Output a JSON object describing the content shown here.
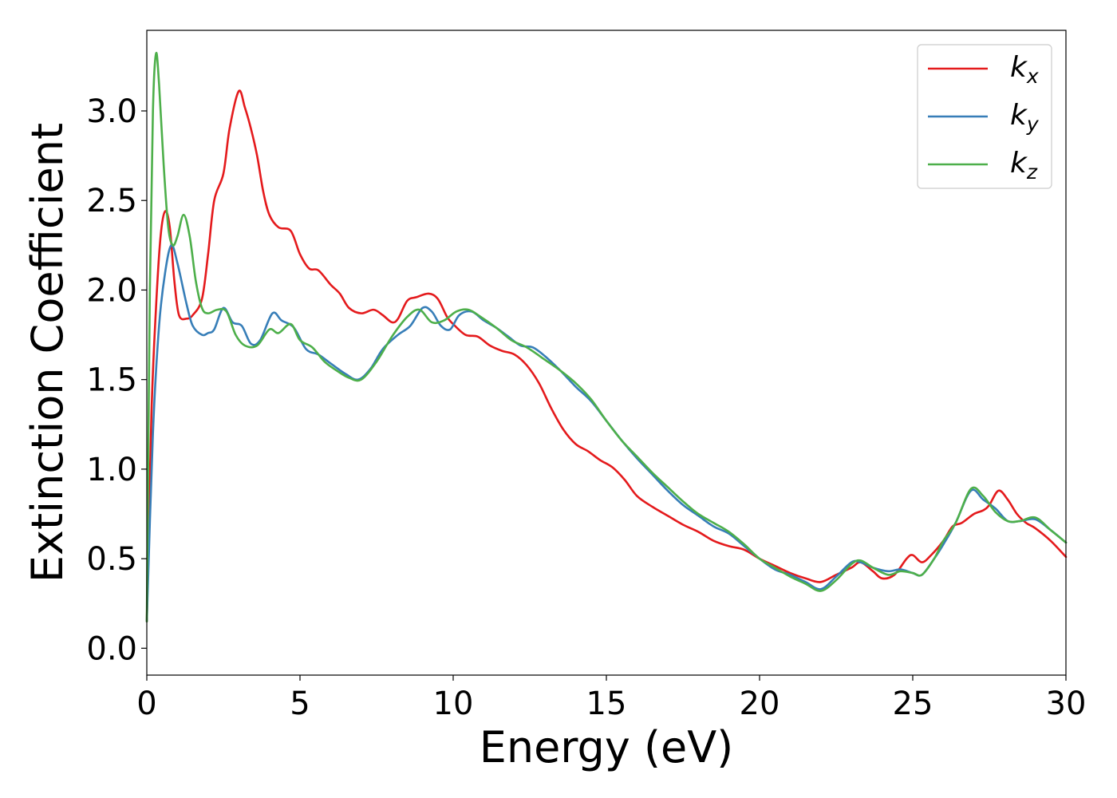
{
  "chart_data": {
    "type": "line",
    "xlabel": "Energy (eV)",
    "ylabel": "Extinction Coefficient",
    "xlim": [
      0,
      30
    ],
    "ylim": [
      -0.15,
      3.45
    ],
    "xticks": [
      0,
      5,
      10,
      15,
      20,
      25,
      30
    ],
    "xtick_labels": [
      "0",
      "5",
      "10",
      "15",
      "20",
      "25",
      "30"
    ],
    "yticks": [
      0.0,
      0.5,
      1.0,
      1.5,
      2.0,
      2.5,
      3.0
    ],
    "ytick_labels": [
      "0.0",
      "0.5",
      "1.0",
      "1.5",
      "2.0",
      "2.5",
      "3.0"
    ],
    "grid": false,
    "legend_position": "top-right",
    "series": [
      {
        "name": "k",
        "subscript": "x",
        "color": "#e41a1c",
        "points": [
          [
            0,
            0.15
          ],
          [
            0.15,
            1.3
          ],
          [
            0.3,
            1.9
          ],
          [
            0.45,
            2.3
          ],
          [
            0.6,
            2.44
          ],
          [
            0.75,
            2.35
          ],
          [
            0.9,
            2.05
          ],
          [
            1.05,
            1.86
          ],
          [
            1.3,
            1.84
          ],
          [
            1.5,
            1.86
          ],
          [
            1.8,
            1.95
          ],
          [
            2.0,
            2.2
          ],
          [
            2.2,
            2.5
          ],
          [
            2.5,
            2.65
          ],
          [
            2.7,
            2.9
          ],
          [
            3.0,
            3.11
          ],
          [
            3.2,
            3.02
          ],
          [
            3.4,
            2.9
          ],
          [
            3.6,
            2.75
          ],
          [
            3.8,
            2.55
          ],
          [
            4.0,
            2.42
          ],
          [
            4.3,
            2.35
          ],
          [
            4.7,
            2.33
          ],
          [
            5.0,
            2.2
          ],
          [
            5.3,
            2.12
          ],
          [
            5.6,
            2.11
          ],
          [
            6.0,
            2.03
          ],
          [
            6.3,
            1.98
          ],
          [
            6.6,
            1.9
          ],
          [
            7.0,
            1.87
          ],
          [
            7.4,
            1.89
          ],
          [
            7.7,
            1.86
          ],
          [
            8.0,
            1.82
          ],
          [
            8.2,
            1.84
          ],
          [
            8.5,
            1.94
          ],
          [
            8.8,
            1.96
          ],
          [
            9.2,
            1.98
          ],
          [
            9.5,
            1.95
          ],
          [
            9.8,
            1.85
          ],
          [
            10.0,
            1.81
          ],
          [
            10.4,
            1.75
          ],
          [
            10.8,
            1.74
          ],
          [
            11.2,
            1.69
          ],
          [
            11.6,
            1.66
          ],
          [
            12.0,
            1.64
          ],
          [
            12.4,
            1.58
          ],
          [
            12.8,
            1.48
          ],
          [
            13.2,
            1.34
          ],
          [
            13.6,
            1.22
          ],
          [
            14.0,
            1.14
          ],
          [
            14.4,
            1.1
          ],
          [
            14.8,
            1.05
          ],
          [
            15.2,
            1.01
          ],
          [
            15.6,
            0.94
          ],
          [
            16.0,
            0.85
          ],
          [
            16.5,
            0.79
          ],
          [
            17.0,
            0.74
          ],
          [
            17.5,
            0.69
          ],
          [
            18.0,
            0.65
          ],
          [
            18.5,
            0.6
          ],
          [
            19.0,
            0.57
          ],
          [
            19.5,
            0.55
          ],
          [
            20.0,
            0.5
          ],
          [
            20.5,
            0.46
          ],
          [
            21.0,
            0.42
          ],
          [
            21.5,
            0.39
          ],
          [
            22.0,
            0.37
          ],
          [
            22.5,
            0.41
          ],
          [
            23.0,
            0.45
          ],
          [
            23.3,
            0.48
          ],
          [
            23.7,
            0.43
          ],
          [
            24.0,
            0.39
          ],
          [
            24.4,
            0.41
          ],
          [
            24.8,
            0.5
          ],
          [
            25.0,
            0.52
          ],
          [
            25.3,
            0.48
          ],
          [
            25.6,
            0.52
          ],
          [
            26.0,
            0.6
          ],
          [
            26.3,
            0.68
          ],
          [
            26.6,
            0.7
          ],
          [
            27.0,
            0.75
          ],
          [
            27.3,
            0.77
          ],
          [
            27.5,
            0.8
          ],
          [
            27.8,
            0.88
          ],
          [
            28.1,
            0.83
          ],
          [
            28.4,
            0.75
          ],
          [
            28.7,
            0.7
          ],
          [
            29.0,
            0.67
          ],
          [
            29.5,
            0.6
          ],
          [
            30.0,
            0.51
          ]
        ]
      },
      {
        "name": "k",
        "subscript": "y",
        "color": "#377eb8",
        "points": [
          [
            0,
            0.15
          ],
          [
            0.2,
            1.2
          ],
          [
            0.4,
            1.8
          ],
          [
            0.6,
            2.1
          ],
          [
            0.8,
            2.25
          ],
          [
            1.0,
            2.15
          ],
          [
            1.3,
            1.92
          ],
          [
            1.5,
            1.8
          ],
          [
            1.8,
            1.75
          ],
          [
            2.0,
            1.76
          ],
          [
            2.2,
            1.78
          ],
          [
            2.5,
            1.9
          ],
          [
            2.8,
            1.82
          ],
          [
            3.1,
            1.8
          ],
          [
            3.4,
            1.7
          ],
          [
            3.7,
            1.72
          ],
          [
            4.1,
            1.87
          ],
          [
            4.4,
            1.83
          ],
          [
            4.8,
            1.79
          ],
          [
            5.2,
            1.67
          ],
          [
            5.6,
            1.64
          ],
          [
            6.0,
            1.59
          ],
          [
            6.5,
            1.53
          ],
          [
            6.9,
            1.5
          ],
          [
            7.3,
            1.56
          ],
          [
            7.7,
            1.67
          ],
          [
            8.2,
            1.75
          ],
          [
            8.6,
            1.8
          ],
          [
            9.0,
            1.9
          ],
          [
            9.3,
            1.88
          ],
          [
            9.6,
            1.8
          ],
          [
            9.9,
            1.78
          ],
          [
            10.2,
            1.86
          ],
          [
            10.6,
            1.88
          ],
          [
            11.0,
            1.83
          ],
          [
            11.4,
            1.79
          ],
          [
            11.8,
            1.74
          ],
          [
            12.2,
            1.69
          ],
          [
            12.6,
            1.68
          ],
          [
            13.0,
            1.63
          ],
          [
            13.5,
            1.55
          ],
          [
            14.0,
            1.46
          ],
          [
            14.5,
            1.38
          ],
          [
            15.0,
            1.27
          ],
          [
            15.5,
            1.16
          ],
          [
            16.0,
            1.06
          ],
          [
            16.5,
            0.97
          ],
          [
            17.0,
            0.88
          ],
          [
            17.5,
            0.8
          ],
          [
            18.0,
            0.74
          ],
          [
            18.5,
            0.68
          ],
          [
            19.0,
            0.64
          ],
          [
            19.5,
            0.57
          ],
          [
            20.0,
            0.5
          ],
          [
            20.5,
            0.44
          ],
          [
            21.0,
            0.41
          ],
          [
            21.5,
            0.37
          ],
          [
            22.0,
            0.33
          ],
          [
            22.5,
            0.4
          ],
          [
            23.0,
            0.48
          ],
          [
            23.3,
            0.48
          ],
          [
            23.7,
            0.45
          ],
          [
            24.2,
            0.43
          ],
          [
            24.6,
            0.44
          ],
          [
            25.0,
            0.42
          ],
          [
            25.3,
            0.41
          ],
          [
            25.7,
            0.5
          ],
          [
            26.0,
            0.58
          ],
          [
            26.4,
            0.7
          ],
          [
            26.9,
            0.88
          ],
          [
            27.3,
            0.83
          ],
          [
            27.7,
            0.78
          ],
          [
            28.1,
            0.71
          ],
          [
            28.5,
            0.71
          ],
          [
            29.0,
            0.72
          ],
          [
            29.5,
            0.66
          ],
          [
            30.0,
            0.59
          ]
        ]
      },
      {
        "name": "k",
        "subscript": "z",
        "color": "#4daf4a",
        "points": [
          [
            0,
            0.15
          ],
          [
            0.1,
            2.0
          ],
          [
            0.2,
            3.0
          ],
          [
            0.3,
            3.32
          ],
          [
            0.4,
            3.15
          ],
          [
            0.55,
            2.7
          ],
          [
            0.7,
            2.35
          ],
          [
            0.85,
            2.25
          ],
          [
            1.0,
            2.3
          ],
          [
            1.2,
            2.42
          ],
          [
            1.4,
            2.3
          ],
          [
            1.6,
            2.05
          ],
          [
            1.8,
            1.9
          ],
          [
            2.0,
            1.87
          ],
          [
            2.3,
            1.89
          ],
          [
            2.6,
            1.88
          ],
          [
            2.9,
            1.75
          ],
          [
            3.2,
            1.69
          ],
          [
            3.6,
            1.69
          ],
          [
            4.0,
            1.78
          ],
          [
            4.3,
            1.76
          ],
          [
            4.7,
            1.81
          ],
          [
            5.0,
            1.72
          ],
          [
            5.4,
            1.68
          ],
          [
            5.8,
            1.6
          ],
          [
            6.2,
            1.55
          ],
          [
            6.6,
            1.51
          ],
          [
            7.0,
            1.5
          ],
          [
            7.5,
            1.6
          ],
          [
            8.0,
            1.74
          ],
          [
            8.5,
            1.85
          ],
          [
            8.9,
            1.89
          ],
          [
            9.3,
            1.82
          ],
          [
            9.7,
            1.83
          ],
          [
            10.1,
            1.88
          ],
          [
            10.5,
            1.89
          ],
          [
            10.9,
            1.85
          ],
          [
            11.4,
            1.79
          ],
          [
            11.9,
            1.72
          ],
          [
            12.4,
            1.68
          ],
          [
            13.0,
            1.61
          ],
          [
            13.5,
            1.55
          ],
          [
            14.0,
            1.48
          ],
          [
            14.5,
            1.39
          ],
          [
            15.0,
            1.27
          ],
          [
            15.5,
            1.16
          ],
          [
            16.0,
            1.07
          ],
          [
            16.5,
            0.98
          ],
          [
            17.0,
            0.9
          ],
          [
            17.5,
            0.82
          ],
          [
            18.0,
            0.75
          ],
          [
            18.5,
            0.7
          ],
          [
            19.0,
            0.65
          ],
          [
            19.5,
            0.58
          ],
          [
            20.0,
            0.5
          ],
          [
            20.5,
            0.45
          ],
          [
            21.0,
            0.4
          ],
          [
            21.5,
            0.36
          ],
          [
            22.0,
            0.32
          ],
          [
            22.5,
            0.38
          ],
          [
            23.0,
            0.47
          ],
          [
            23.3,
            0.49
          ],
          [
            23.7,
            0.45
          ],
          [
            24.2,
            0.41
          ],
          [
            24.6,
            0.43
          ],
          [
            25.0,
            0.42
          ],
          [
            25.3,
            0.41
          ],
          [
            25.7,
            0.5
          ],
          [
            26.0,
            0.6
          ],
          [
            26.4,
            0.7
          ],
          [
            26.9,
            0.89
          ],
          [
            27.3,
            0.85
          ],
          [
            27.7,
            0.76
          ],
          [
            28.1,
            0.71
          ],
          [
            28.5,
            0.71
          ],
          [
            29.0,
            0.73
          ],
          [
            29.5,
            0.66
          ],
          [
            30.0,
            0.59
          ]
        ]
      }
    ]
  }
}
